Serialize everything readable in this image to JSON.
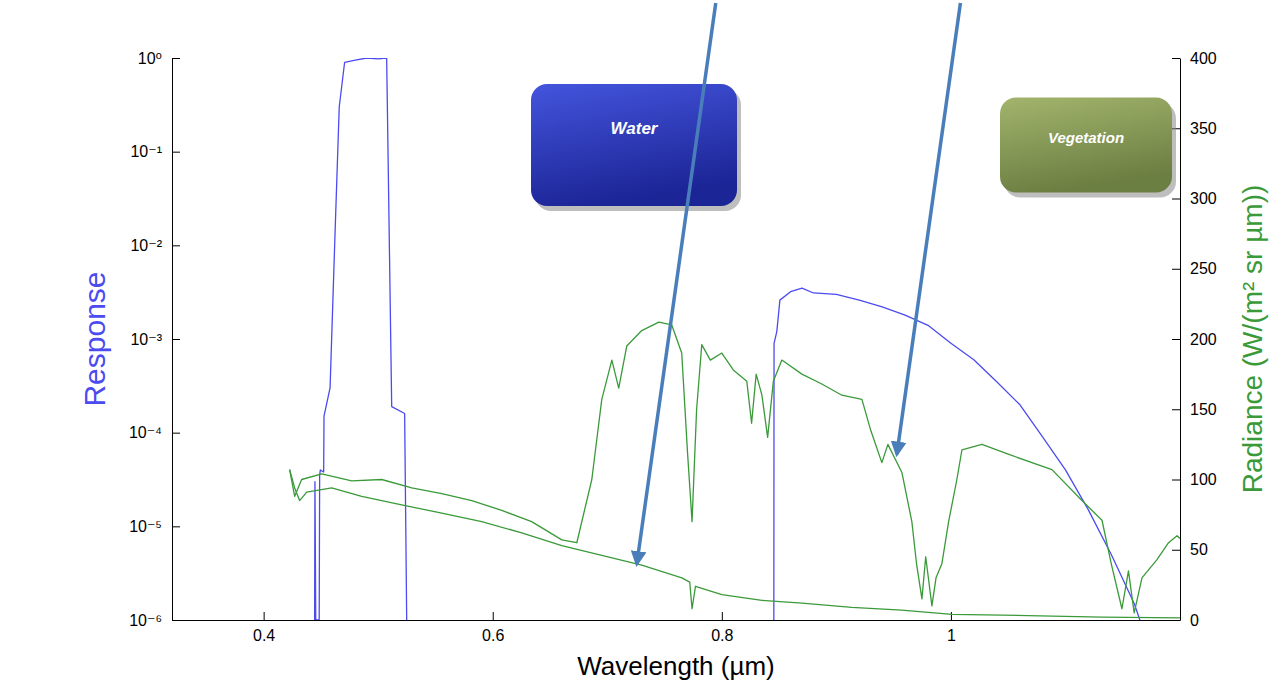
{
  "chart_data": {
    "type": "line",
    "xlabel": "Wavelength (µm)",
    "ylabel": "Response",
    "y2label": "Radiance (W/(m² sr µm))",
    "log": "y",
    "grid": false,
    "xlim": [
      0.32,
      1.2
    ],
    "xticks": [
      0.4,
      0.6,
      0.8,
      1
    ],
    "ylim": [
      1e-06,
      1
    ],
    "yticks": [
      {
        "value": 1e-06,
        "label": "10⁻⁶"
      },
      {
        "value": 1e-05,
        "label": "10⁻⁵"
      },
      {
        "value": 0.0001,
        "label": "10⁻⁴"
      },
      {
        "value": 0.001,
        "label": "10⁻³"
      },
      {
        "value": 0.01,
        "label": "10⁻²"
      },
      {
        "value": 0.1,
        "label": "10⁻¹"
      },
      {
        "value": 1,
        "label": "10⁰"
      }
    ],
    "y2lim": [
      0,
      400
    ],
    "y2ticks": [
      0,
      50,
      100,
      150,
      200,
      250,
      300,
      350,
      400
    ],
    "series": [
      {
        "color": "#4b4bf0",
        "x": [
          0.4445,
          0.4448,
          0.4455,
          0.4485,
          0.4489,
          0.4495,
          0.4524,
          0.4527,
          0.458,
          0.462,
          0.466,
          0.4707,
          0.48,
          0.49,
          0.5,
          0.5074,
          0.5118,
          0.5231,
          0.5249
        ],
        "values": [
          1e-06,
          3e-05,
          1e-06,
          1e-06,
          3.5e-05,
          4e-05,
          3.8e-05,
          0.00015,
          0.0003,
          0.01,
          0.3,
          0.9,
          0.95,
          1,
          0.98,
          1,
          0.00019,
          0.00016,
          1e-06
        ]
      },
      {
        "color": "#4b4bf0",
        "x": [
          0.8454,
          0.8456,
          0.848,
          0.8507,
          0.86,
          0.87,
          0.88,
          0.9,
          0.92,
          0.94,
          0.96,
          0.98,
          1,
          1.02,
          1.04,
          1.06,
          1.08,
          1.1,
          1.12,
          1.14,
          1.16,
          1.165
        ],
        "values": [
          1e-06,
          0.0009,
          0.0012,
          0.0026,
          0.0032,
          0.0035,
          0.0031,
          0.003,
          0.0026,
          0.0022,
          0.0018,
          0.0014,
          0.0009,
          0.0006,
          0.00035,
          0.0002,
          9e-05,
          4e-05,
          1.5e-05,
          5e-06,
          1.5e-06,
          1e-06
        ]
      },
      {
        "color": "#3a9a3a",
        "axis": "y2",
        "x": [
          0.4227,
          0.4271,
          0.4314,
          0.4376,
          0.4594,
          0.4856,
          0.5205,
          0.5555,
          0.5904,
          0.6253,
          0.6603,
          0.6952,
          0.7301,
          0.7651,
          0.772,
          0.774,
          0.777,
          0.8,
          0.835,
          0.87,
          0.9135,
          0.957,
          1.0009,
          1.0445,
          1.132,
          1.2
        ],
        "values": [
          107,
          94,
          85,
          91,
          94,
          88,
          82,
          76,
          70,
          62,
          53,
          46,
          39,
          30,
          27,
          8,
          24,
          18,
          14,
          12,
          9,
          7,
          4,
          3.5,
          2,
          1.5
        ]
      },
      {
        "color": "#3a9a3a",
        "axis": "y2",
        "x": [
          0.4227,
          0.4271,
          0.4332,
          0.4507,
          0.4769,
          0.5031,
          0.5293,
          0.5555,
          0.5817,
          0.6079,
          0.634,
          0.6603,
          0.6734,
          0.6865,
          0.6952,
          0.704,
          0.71,
          0.717,
          0.7301,
          0.745,
          0.7563,
          0.765,
          0.77,
          0.774,
          0.778,
          0.7825,
          0.79,
          0.8,
          0.81,
          0.8218,
          0.826,
          0.83,
          0.835,
          0.84,
          0.845,
          0.8524,
          0.8699,
          0.8873,
          0.9048,
          0.9223,
          0.93,
          0.9397,
          0.945,
          0.9572,
          0.9659,
          0.97,
          0.9747,
          0.978,
          0.9834,
          0.987,
          0.9921,
          0.998,
          1.0052,
          1.0096,
          1.0271,
          1.05,
          1.0882,
          1.1144,
          1.1319,
          1.14,
          1.1493,
          1.155,
          1.16,
          1.1668,
          1.1799,
          1.19,
          1.1974,
          1.2
        ],
        "values": [
          107,
          88,
          100,
          104,
          99,
          100,
          94,
          90,
          85,
          78,
          70,
          57,
          55,
          100,
          157,
          185,
          165,
          195,
          206,
          212,
          210,
          190,
          120,
          70,
          150,
          196,
          185,
          190,
          178,
          170,
          140,
          175,
          160,
          130,
          170,
          185,
          175,
          168,
          160,
          157,
          135,
          112,
          125,
          105,
          70,
          40,
          15,
          45,
          10,
          30,
          40,
          70,
          100,
          121,
          125,
          118,
          107,
          85,
          71,
          40,
          8,
          35,
          5,
          30,
          43,
          55,
          60,
          58
        ]
      }
    ],
    "annotations": [
      {
        "text": "Water",
        "x": 0.7258,
        "y": 40,
        "axis": "y2"
      },
      {
        "text": "Vegetation",
        "x": 0.9528,
        "y": 118,
        "axis": "y2"
      }
    ]
  }
}
